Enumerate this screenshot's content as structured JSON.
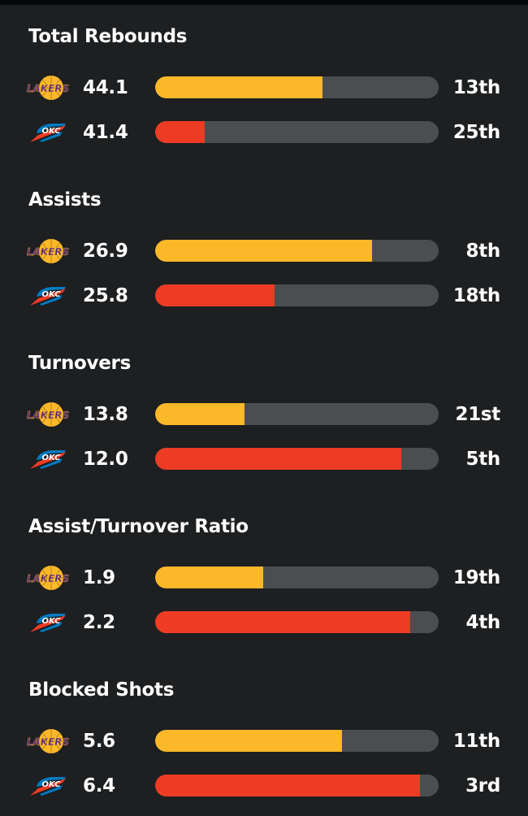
{
  "colors": {
    "background": "#1d1f21",
    "track": "#4b4e51",
    "lakers": "#fbb829",
    "thunder": "#ee3c24",
    "lakers_purple": "#552583",
    "thunder_blue": "#007ac1",
    "thunder_orange": "#ef3b24"
  },
  "teams": {
    "lakers": {
      "logo_text": "LAKERS",
      "logo_icon": "lakers-logo"
    },
    "thunder": {
      "logo_text": "OKC",
      "logo_icon": "okc-thunder-logo"
    }
  },
  "sections": [
    {
      "title": "Total Rebounds",
      "rows": [
        {
          "team": "lakers",
          "value": "44.1",
          "rank": "13th",
          "fill": 0.59
        },
        {
          "team": "thunder",
          "value": "41.4",
          "rank": "25th",
          "fill": 0.175
        }
      ]
    },
    {
      "title": "Assists",
      "rows": [
        {
          "team": "lakers",
          "value": "26.9",
          "rank": "8th",
          "fill": 0.765
        },
        {
          "team": "thunder",
          "value": "25.8",
          "rank": "18th",
          "fill": 0.42
        }
      ]
    },
    {
      "title": "Turnovers",
      "rows": [
        {
          "team": "lakers",
          "value": "13.8",
          "rank": "21st",
          "fill": 0.315
        },
        {
          "team": "thunder",
          "value": "12.0",
          "rank": "5th",
          "fill": 0.867
        }
      ]
    },
    {
      "title": "Assist/Turnover Ratio",
      "rows": [
        {
          "team": "lakers",
          "value": "1.9",
          "rank": "19th",
          "fill": 0.382
        },
        {
          "team": "thunder",
          "value": "2.2",
          "rank": "4th",
          "fill": 0.9
        }
      ]
    },
    {
      "title": "Blocked Shots",
      "rows": [
        {
          "team": "lakers",
          "value": "5.6",
          "rank": "11th",
          "fill": 0.659
        },
        {
          "team": "thunder",
          "value": "6.4",
          "rank": "3rd",
          "fill": 0.935
        }
      ]
    }
  ]
}
